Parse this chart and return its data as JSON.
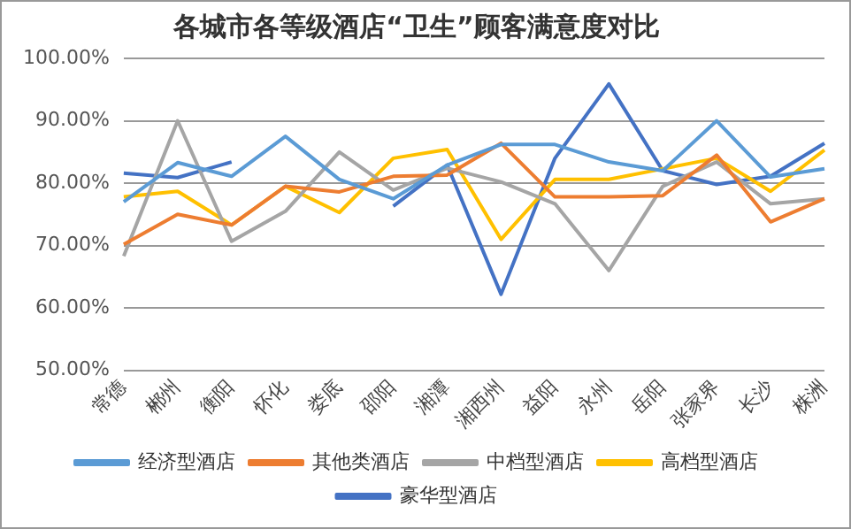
{
  "chart_data": {
    "type": "line",
    "title": "各城市各等级酒店“卫生”顾客满意度对比",
    "categories": [
      "常德",
      "郴州",
      "衡阳",
      "怀化",
      "娄底",
      "邵阳",
      "湘潭",
      "湘西州",
      "益阳",
      "永州",
      "岳阳",
      "张家界",
      "长沙",
      "株洲"
    ],
    "series": [
      {
        "name": "经济型酒店",
        "color": "#5b9bd5",
        "values": [
          77,
          83.3,
          81.1,
          87.5,
          80.6,
          77.5,
          82.9,
          86.2,
          86.2,
          83.4,
          82,
          90,
          81,
          82.3
        ]
      },
      {
        "name": "其他类酒店",
        "color": "#ed7d31",
        "values": [
          70.2,
          75,
          73.3,
          79.5,
          78.6,
          81.1,
          81.3,
          86.4,
          77.8,
          77.8,
          78,
          84.5,
          73.8,
          77.5
        ]
      },
      {
        "name": "中档型酒店",
        "color": "#a5a5a5",
        "values": [
          68.3,
          90,
          70.7,
          75.5,
          85,
          78.9,
          82.4,
          80.2,
          76.7,
          66,
          79.5,
          83.4,
          76.7,
          77.5
        ]
      },
      {
        "name": "高档型酒店",
        "color": "#ffc000",
        "values": [
          77.8,
          78.7,
          73.3,
          79.5,
          75.3,
          84,
          85.4,
          71,
          80.6,
          80.6,
          82.3,
          84,
          78.7,
          85.3
        ]
      },
      {
        "name": "豪华型酒店",
        "color": "#4472c4",
        "values": [
          81.6,
          80.9,
          83.4,
          null,
          null,
          76.3,
          82.9,
          62.2,
          84,
          95.9,
          82,
          79.8,
          81.1,
          86.4
        ]
      }
    ],
    "ylim": [
      50,
      100
    ],
    "yticks": [
      {
        "value": 50,
        "label": "50.00%"
      },
      {
        "value": 60,
        "label": "60.00%"
      },
      {
        "value": 70,
        "label": "70.00%"
      },
      {
        "value": 80,
        "label": "80.00%"
      },
      {
        "value": 90,
        "label": "90.00%"
      },
      {
        "value": 100,
        "label": "100.00%"
      }
    ],
    "grid": "y",
    "legend": "bottom",
    "marker": "none",
    "line_style": "solid"
  }
}
